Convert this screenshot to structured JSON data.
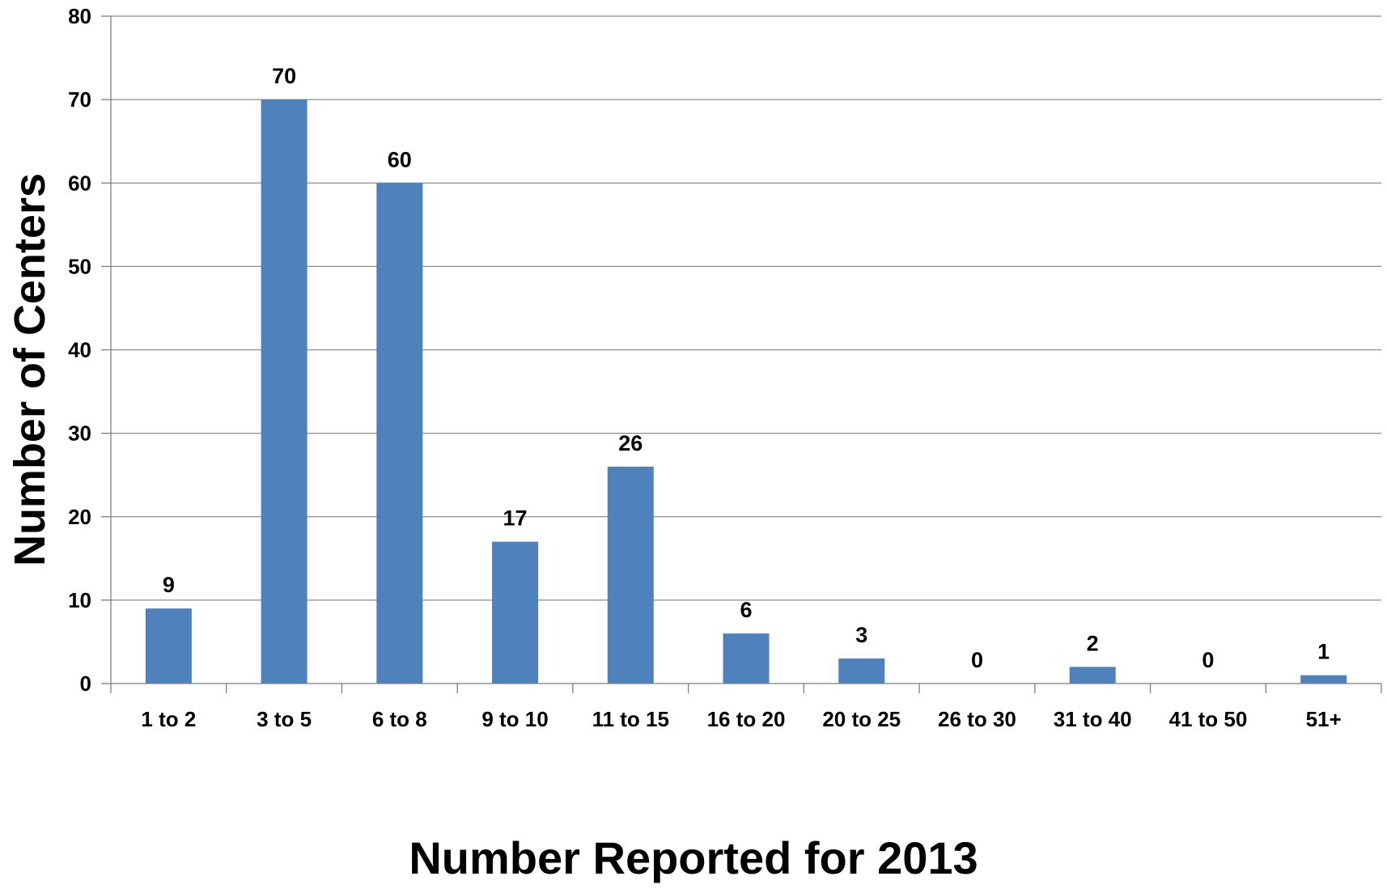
{
  "chart_data": {
    "type": "bar",
    "title": "",
    "xlabel": "Number Reported for 2013",
    "ylabel": "Number of Centers",
    "categories": [
      "1 to 2",
      "3 to 5",
      "6 to 8",
      "9 to 10",
      "11 to 15",
      "16 to 20",
      "20 to 25",
      "26 to 30",
      "31 to 40",
      "41 to 50",
      "51+"
    ],
    "values": [
      9,
      70,
      60,
      17,
      26,
      6,
      3,
      0,
      2,
      0,
      1
    ],
    "ylim": [
      0,
      80
    ],
    "yticks": [
      0,
      10,
      20,
      30,
      40,
      50,
      60,
      70,
      80
    ],
    "grid": true,
    "legend": "none",
    "bar_color": "#4F81BD",
    "grid_color": "#8C8C8C",
    "axis_color": "#7F7F7F"
  }
}
